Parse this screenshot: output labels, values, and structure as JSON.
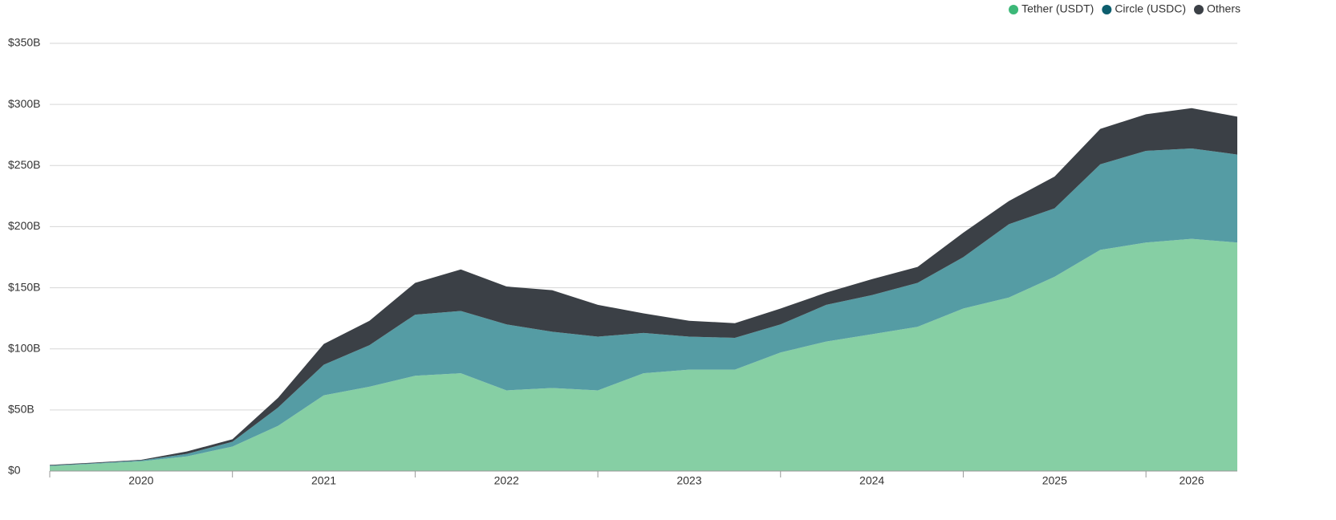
{
  "chart_data": {
    "type": "stacked_area",
    "categories": [
      null,
      null,
      "2020",
      null,
      null,
      null,
      "2021",
      null,
      null,
      null,
      "2022",
      null,
      null,
      null,
      "2023",
      null,
      null,
      null,
      "2024",
      null,
      null,
      null,
      "2025",
      null,
      null,
      "2026",
      null
    ],
    "series": [
      {
        "name": "Tether (USDT)",
        "color": "#86cfa4",
        "dot": "#3cb878",
        "values": [
          4,
          6,
          8,
          12,
          20,
          37,
          62,
          69,
          78,
          80,
          66,
          68,
          66,
          80,
          83,
          83,
          97,
          106,
          112,
          118,
          133,
          142,
          159,
          181,
          187,
          190,
          187
        ]
      },
      {
        "name": "Circle (USDC)",
        "color": "#559ca4",
        "dot": "#0d5e6e",
        "values": [
          0.5,
          0.5,
          0.7,
          2,
          4,
          15,
          25,
          34,
          50,
          51,
          54,
          46,
          44,
          33,
          27,
          26,
          23,
          30,
          32,
          36,
          42,
          60,
          56,
          70,
          75,
          74,
          72
        ]
      },
      {
        "name": "Others",
        "color": "#3b4046",
        "dot": "#3b4046",
        "values": [
          0.5,
          0.5,
          0.5,
          2,
          2,
          8,
          17,
          20,
          26,
          34,
          31,
          34,
          26,
          16,
          13,
          12,
          13,
          10,
          13,
          13,
          20,
          19,
          26,
          29,
          30,
          33,
          31
        ]
      }
    ],
    "ylim": [
      0,
      350
    ],
    "yticks": [
      {
        "value": 0,
        "label": "$0"
      },
      {
        "value": 50,
        "label": "$50B"
      },
      {
        "value": 100,
        "label": "$100B"
      },
      {
        "value": 150,
        "label": "$150B"
      },
      {
        "value": 200,
        "label": "$200B"
      },
      {
        "value": 250,
        "label": "$250B"
      },
      {
        "value": 300,
        "label": "$300B"
      },
      {
        "value": 350,
        "label": "$350B"
      }
    ],
    "grid": true,
    "legend": "top-right"
  }
}
